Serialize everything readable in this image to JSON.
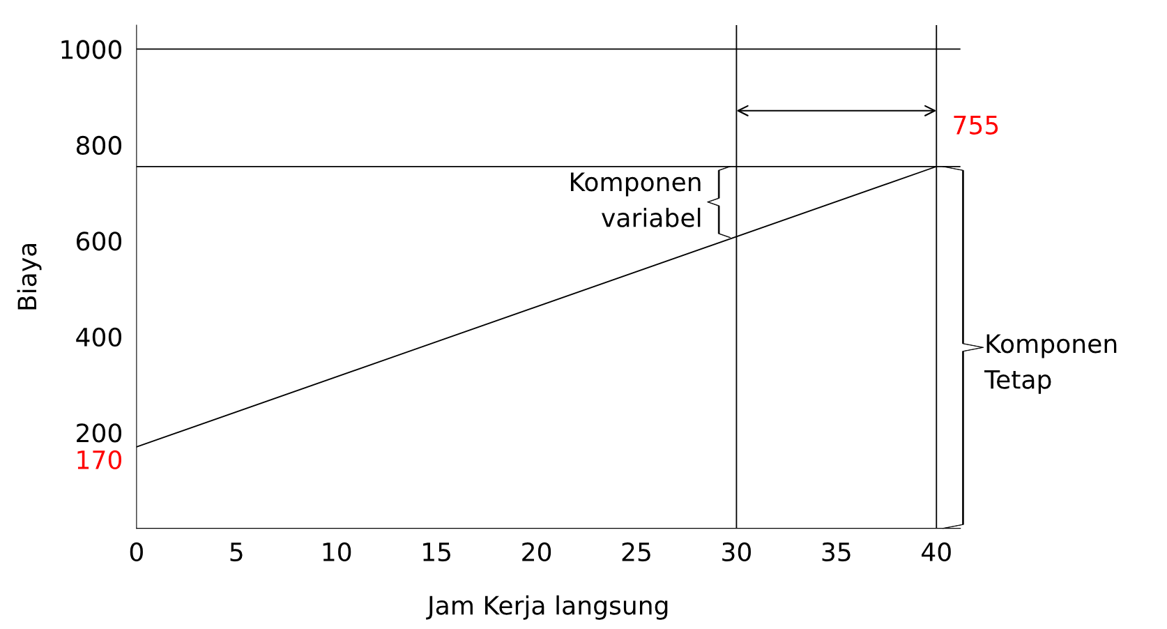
{
  "chart_data": {
    "type": "line",
    "xlabel": "Jam Kerja langsung",
    "ylabel": "Biaya",
    "x": [
      0,
      40
    ],
    "series": [
      {
        "color": "#000000",
        "values": [
          170,
          755
        ]
      }
    ],
    "xlim": [
      0,
      41.2
    ],
    "ylim": [
      0,
      1050
    ],
    "xticks": [
      0,
      5,
      10,
      15,
      20,
      25,
      30,
      35,
      40
    ],
    "yticks": [
      200,
      400,
      600,
      800,
      1000
    ],
    "ref_lines": [
      {
        "axis": "y",
        "value": 1000,
        "color": "#000000"
      },
      {
        "axis": "y",
        "value": 755,
        "color": "#000000"
      },
      {
        "axis": "x",
        "value": 30,
        "color": "#000000"
      },
      {
        "axis": "x",
        "value": 40,
        "color": "#000000"
      }
    ],
    "annotations": [
      {
        "text": "170",
        "x": 0,
        "y": 170
      },
      {
        "text": "755",
        "x": 40,
        "y": 755
      },
      {
        "text": "Komponen\nvariabel",
        "x": 30,
        "y": 681
      },
      {
        "text": "Komponen\nTetap",
        "x": 40,
        "y": 378
      }
    ],
    "grid": false,
    "marker": "none",
    "line_style": "solid"
  }
}
